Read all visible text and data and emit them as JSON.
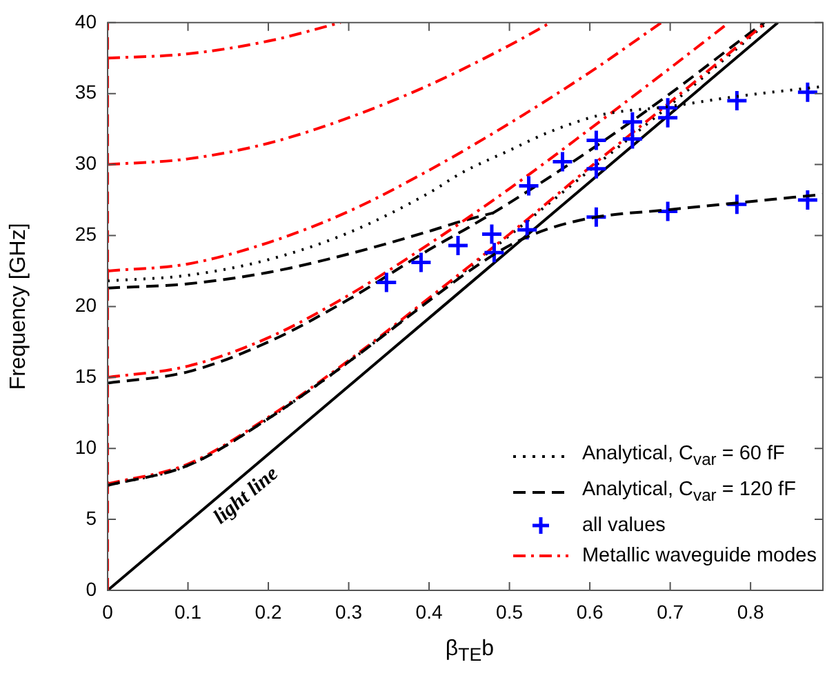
{
  "chart_data": {
    "type": "line",
    "xlabel": "β$_{TE}$b",
    "ylabel": "Frequency [GHz]",
    "xlim": [
      0,
      0.89
    ],
    "ylim": [
      0,
      40
    ],
    "xticks": [
      0,
      0.1,
      0.2,
      0.3,
      0.4,
      0.5,
      0.6,
      0.7,
      0.8
    ],
    "yticks": [
      0,
      5,
      10,
      15,
      20,
      25,
      30,
      35,
      40
    ],
    "legend": "bottom right",
    "marker": "none",
    "annotations": [
      {
        "text": "light line",
        "x": 0.13,
        "y": 6.2
      }
    ],
    "series": [
      {
        "name": "Analytical, C$_{var}$ = 60 fF",
        "color": "#000000",
        "line_style": "dotted",
        "x": [
          0,
          0.1,
          0.2,
          0.3,
          0.4,
          0.44,
          0.5,
          0.55,
          0.614,
          0.7,
          0.783,
          0.89
        ],
        "values": [
          21.8,
          22.2,
          23.3,
          25.2,
          28.0,
          29.4,
          31.0,
          32.3,
          33.5,
          34.1,
          34.8,
          35.5
        ]
      },
      {
        "name": "Analytical, C$_{var}$ = 120 fF",
        "color": "#000000",
        "line_style": "dashed",
        "x": [
          0,
          0.1,
          0.2,
          0.3,
          0.4,
          0.45,
          0.5,
          0.55,
          0.608,
          0.695,
          0.783,
          0.89
        ],
        "values": [
          7.4,
          8.8,
          12.1,
          16.1,
          20.4,
          22.5,
          24.3,
          25.5,
          26.3,
          26.8,
          27.3,
          27.9
        ]
      },
      {
        "type": "scatter",
        "name": "all values",
        "color": "#0000ff",
        "marker": "cross",
        "x": [
          0.347,
          0.39,
          0.436,
          0.478,
          0.481,
          0.524,
          0.522,
          0.566,
          0.608,
          0.608,
          0.608,
          0.653,
          0.653,
          0.697,
          0.697,
          0.697,
          0.783,
          0.783,
          0.871,
          0.871
        ],
        "values": [
          21.7,
          23.1,
          24.3,
          25.1,
          23.8,
          28.5,
          25.4,
          30.2,
          31.7,
          29.7,
          26.3,
          33.0,
          31.8,
          34.0,
          33.3,
          26.7,
          34.5,
          27.2,
          35.1,
          27.5
        ]
      },
      {
        "name": "Metallic waveguide modes",
        "color": "#ff0000",
        "line_style": "dashdot",
        "x": [
          0,
          0.1,
          0.2,
          0.3,
          0.4,
          0.5,
          0.6,
          0.7,
          0.8,
          0.819
        ],
        "values": [
          7.5,
          8.9,
          12.2,
          16.2,
          20.6,
          25.1,
          29.8,
          34.4,
          39.1,
          40
        ]
      },
      {
        "color": "#ff0000",
        "line_style": "dashdot",
        "x": [
          0,
          0.1,
          0.2,
          0.3,
          0.4,
          0.5,
          0.6,
          0.7,
          0.773
        ],
        "values": [
          15,
          15.8,
          17.8,
          20.8,
          24.4,
          28.3,
          32.5,
          36.8,
          40
        ]
      },
      {
        "color": "#ff0000",
        "line_style": "dashdot",
        "x": [
          0,
          0.1,
          0.2,
          0.3,
          0.4,
          0.5,
          0.6,
          0.689
        ],
        "values": [
          22.5,
          23.0,
          24.5,
          26.7,
          29.6,
          32.9,
          36.5,
          40
        ]
      },
      {
        "color": "#ff0000",
        "line_style": "dashdot",
        "x": [
          0,
          0.1,
          0.2,
          0.3,
          0.4,
          0.5,
          0.551
        ],
        "values": [
          30,
          30.4,
          31.5,
          33.3,
          35.6,
          38.4,
          40
        ]
      },
      {
        "color": "#ff0000",
        "line_style": "dashdot",
        "x": [
          0,
          0.1,
          0.2,
          0.29
        ],
        "values": [
          37.5,
          37.8,
          38.7,
          40
        ]
      },
      {
        "color": "#ff0000",
        "line_style": "dashed",
        "x": [
          0,
          0
        ],
        "values": [
          0,
          40
        ]
      },
      {
        "color": "#000000",
        "line_style": "dashed",
        "x": [
          0,
          0.1,
          0.2,
          0.3,
          0.4,
          0.45,
          0.5,
          0.6,
          0.7,
          0.8,
          0.817
        ],
        "values": [
          14.6,
          15.4,
          17.5,
          20.5,
          24.0,
          25.6,
          27.3,
          31.0,
          35.0,
          39.3,
          40
        ]
      },
      {
        "color": "#000000",
        "line_style": "dashed",
        "x": [
          0,
          0.1,
          0.2,
          0.3,
          0.4,
          0.44,
          0.48
        ],
        "values": [
          21.3,
          21.6,
          22.4,
          23.7,
          25.3,
          26.0,
          26.6
        ]
      },
      {
        "color": "#000000",
        "line_style": "dotted",
        "x": [
          0,
          0.1,
          0.2,
          0.3,
          0.4,
          0.5,
          0.6,
          0.7,
          0.8,
          0.82
        ],
        "values": [
          7.4,
          8.8,
          12.1,
          16.1,
          20.5,
          25.0,
          29.6,
          34.2,
          39.0,
          40
        ]
      },
      {
        "color": "#000000",
        "line_style": "solid",
        "x": [
          0,
          0.834
        ],
        "values": [
          0,
          40
        ]
      }
    ]
  }
}
